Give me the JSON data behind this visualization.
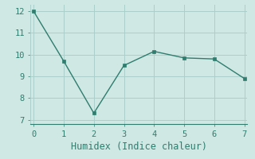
{
  "x": [
    0,
    1,
    2,
    3,
    4,
    5,
    6,
    7
  ],
  "y": [
    12.0,
    9.7,
    7.3,
    9.5,
    10.15,
    9.85,
    9.8,
    8.9
  ],
  "line_color": "#2e7d6e",
  "marker": "s",
  "marker_size": 2.5,
  "xlabel": "Humidex (Indice chaleur)",
  "ylim": [
    6.8,
    12.3
  ],
  "xlim": [
    -0.1,
    7.1
  ],
  "yticks": [
    7,
    8,
    9,
    10,
    11,
    12
  ],
  "xticks": [
    0,
    1,
    2,
    3,
    4,
    5,
    6,
    7
  ],
  "background_color": "#cfe8e4",
  "grid_color": "#aacfca",
  "font_color": "#2e7d6e",
  "xlabel_fontsize": 8.5,
  "tick_fontsize": 7.5,
  "linewidth": 1.0
}
